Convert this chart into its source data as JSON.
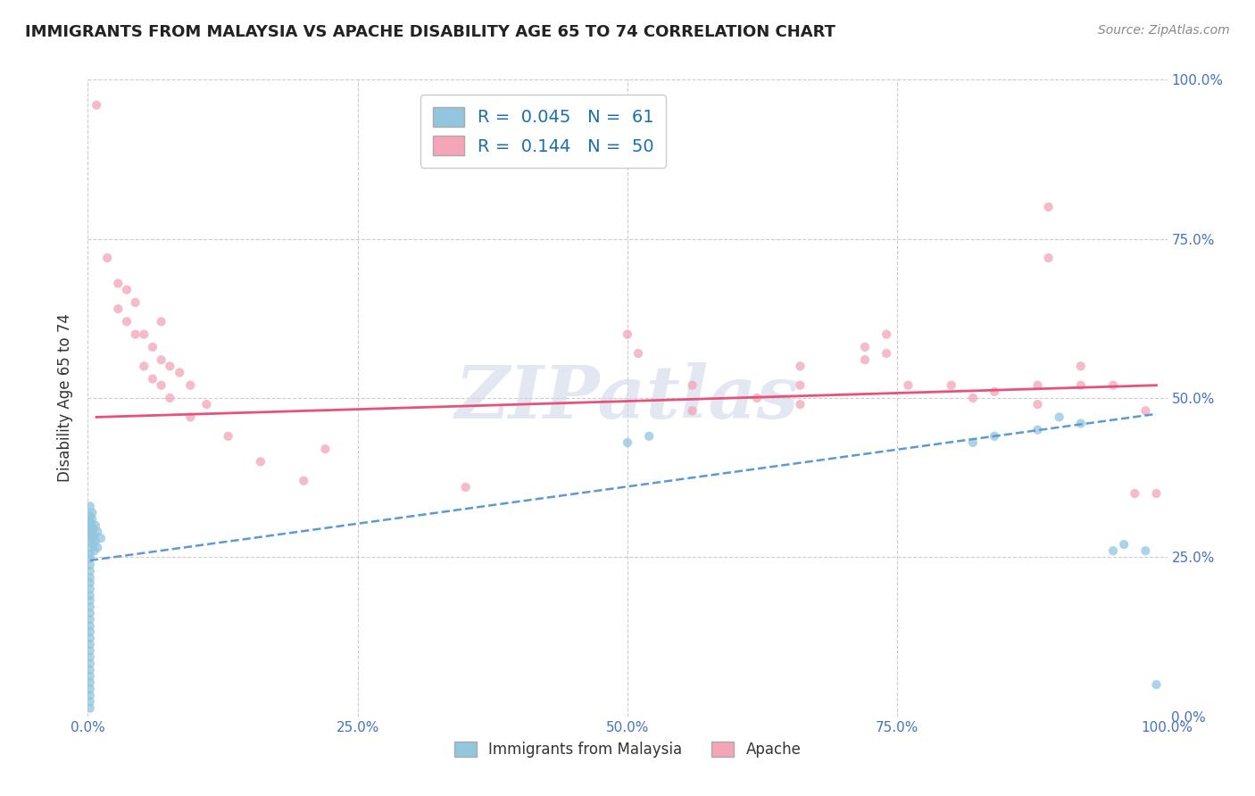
{
  "title": "IMMIGRANTS FROM MALAYSIA VS APACHE DISABILITY AGE 65 TO 74 CORRELATION CHART",
  "source_text": "Source: ZipAtlas.com",
  "xlabel": "Immigrants from Malaysia",
  "ylabel": "Disability Age 65 to 74",
  "watermark": "ZIPatlas",
  "xlim": [
    0.0,
    1.0
  ],
  "ylim": [
    0.0,
    1.0
  ],
  "xticks": [
    0.0,
    0.25,
    0.5,
    0.75,
    1.0
  ],
  "yticks": [
    0.0,
    0.25,
    0.5,
    0.75,
    1.0
  ],
  "xticklabels": [
    "0.0%",
    "25.0%",
    "50.0%",
    "75.0%",
    "100.0%"
  ],
  "yticklabels": [
    "0.0%",
    "25.0%",
    "50.0%",
    "75.0%",
    "100.0%"
  ],
  "blue_R": 0.045,
  "blue_N": 61,
  "pink_R": 0.144,
  "pink_N": 50,
  "blue_color": "#92c5de",
  "pink_color": "#f4a5b8",
  "blue_line_color": "#5b9bd5",
  "pink_line_color": "#e8527a",
  "legend_color": "#1a6faf",
  "blue_points": [
    [
      0.002,
      0.33
    ],
    [
      0.002,
      0.315
    ],
    [
      0.002,
      0.305
    ],
    [
      0.002,
      0.295
    ],
    [
      0.002,
      0.285
    ],
    [
      0.002,
      0.275
    ],
    [
      0.002,
      0.265
    ],
    [
      0.002,
      0.255
    ],
    [
      0.002,
      0.248
    ],
    [
      0.002,
      0.238
    ],
    [
      0.002,
      0.228
    ],
    [
      0.002,
      0.218
    ],
    [
      0.002,
      0.21
    ],
    [
      0.002,
      0.2
    ],
    [
      0.002,
      0.19
    ],
    [
      0.002,
      0.182
    ],
    [
      0.002,
      0.172
    ],
    [
      0.002,
      0.162
    ],
    [
      0.002,
      0.152
    ],
    [
      0.002,
      0.142
    ],
    [
      0.002,
      0.133
    ],
    [
      0.002,
      0.123
    ],
    [
      0.002,
      0.113
    ],
    [
      0.002,
      0.103
    ],
    [
      0.002,
      0.093
    ],
    [
      0.002,
      0.083
    ],
    [
      0.002,
      0.073
    ],
    [
      0.002,
      0.063
    ],
    [
      0.002,
      0.053
    ],
    [
      0.002,
      0.043
    ],
    [
      0.002,
      0.033
    ],
    [
      0.002,
      0.023
    ],
    [
      0.002,
      0.013
    ],
    [
      0.003,
      0.3
    ],
    [
      0.003,
      0.29
    ],
    [
      0.004,
      0.32
    ],
    [
      0.004,
      0.31
    ],
    [
      0.004,
      0.28
    ],
    [
      0.005,
      0.295
    ],
    [
      0.005,
      0.27
    ],
    [
      0.006,
      0.285
    ],
    [
      0.006,
      0.26
    ],
    [
      0.007,
      0.3
    ],
    [
      0.007,
      0.275
    ],
    [
      0.009,
      0.29
    ],
    [
      0.009,
      0.265
    ],
    [
      0.012,
      0.28
    ],
    [
      0.5,
      0.43
    ],
    [
      0.52,
      0.44
    ],
    [
      0.82,
      0.43
    ],
    [
      0.84,
      0.44
    ],
    [
      0.88,
      0.45
    ],
    [
      0.9,
      0.47
    ],
    [
      0.92,
      0.46
    ],
    [
      0.95,
      0.26
    ],
    [
      0.96,
      0.27
    ],
    [
      0.98,
      0.26
    ],
    [
      0.99,
      0.05
    ]
  ],
  "pink_points": [
    [
      0.008,
      0.96
    ],
    [
      0.018,
      0.72
    ],
    [
      0.028,
      0.68
    ],
    [
      0.028,
      0.64
    ],
    [
      0.036,
      0.67
    ],
    [
      0.036,
      0.62
    ],
    [
      0.044,
      0.65
    ],
    [
      0.044,
      0.6
    ],
    [
      0.052,
      0.6
    ],
    [
      0.052,
      0.55
    ],
    [
      0.06,
      0.58
    ],
    [
      0.06,
      0.53
    ],
    [
      0.068,
      0.62
    ],
    [
      0.068,
      0.56
    ],
    [
      0.068,
      0.52
    ],
    [
      0.076,
      0.55
    ],
    [
      0.076,
      0.5
    ],
    [
      0.085,
      0.54
    ],
    [
      0.095,
      0.52
    ],
    [
      0.095,
      0.47
    ],
    [
      0.11,
      0.49
    ],
    [
      0.13,
      0.44
    ],
    [
      0.16,
      0.4
    ],
    [
      0.2,
      0.37
    ],
    [
      0.22,
      0.42
    ],
    [
      0.35,
      0.36
    ],
    [
      0.5,
      0.6
    ],
    [
      0.51,
      0.57
    ],
    [
      0.56,
      0.52
    ],
    [
      0.56,
      0.48
    ],
    [
      0.62,
      0.5
    ],
    [
      0.66,
      0.55
    ],
    [
      0.66,
      0.52
    ],
    [
      0.66,
      0.49
    ],
    [
      0.72,
      0.56
    ],
    [
      0.72,
      0.58
    ],
    [
      0.74,
      0.6
    ],
    [
      0.74,
      0.57
    ],
    [
      0.76,
      0.52
    ],
    [
      0.8,
      0.52
    ],
    [
      0.82,
      0.5
    ],
    [
      0.84,
      0.51
    ],
    [
      0.88,
      0.52
    ],
    [
      0.88,
      0.49
    ],
    [
      0.89,
      0.8
    ],
    [
      0.89,
      0.72
    ],
    [
      0.92,
      0.55
    ],
    [
      0.92,
      0.52
    ],
    [
      0.95,
      0.52
    ],
    [
      0.97,
      0.35
    ],
    [
      0.98,
      0.48
    ],
    [
      0.99,
      0.35
    ]
  ],
  "blue_trend_x": [
    0.002,
    0.99
  ],
  "blue_trend_y": [
    0.245,
    0.475
  ],
  "pink_trend_x": [
    0.008,
    0.99
  ],
  "pink_trend_y": [
    0.47,
    0.52
  ]
}
